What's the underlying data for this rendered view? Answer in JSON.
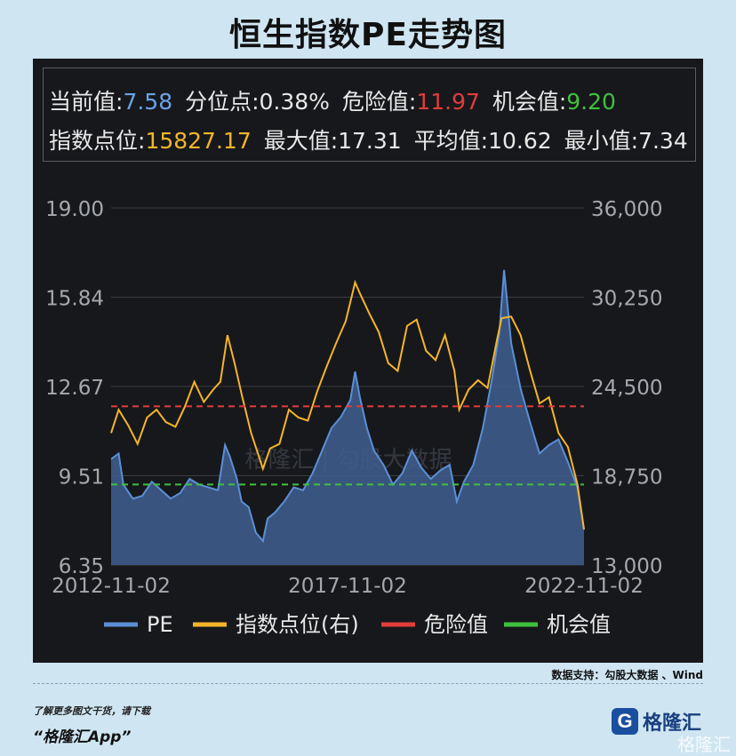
{
  "title": "恒生指数PE走势图",
  "info": {
    "current_label": "当前值:",
    "current_value": "7.58",
    "pct_label": "分位点:",
    "pct_value": "0.38%",
    "danger_label": "危险值:",
    "danger_value": "11.97",
    "opp_label": "机会值:",
    "opp_value": "9.20",
    "index_label": "指数点位:",
    "index_value": "15827.17",
    "max_label": "最大值:",
    "max_value": "17.31",
    "avg_label": "平均值:",
    "avg_value": "10.62",
    "min_label": "最小值:",
    "min_value": "7.34"
  },
  "watermark": "格隆汇 | 勾股大数据",
  "source_text": "数据支持：勾股大数据 、Wind",
  "promo": {
    "line1": "了解更多图文干货，请下载",
    "line2": "“格隆汇App”"
  },
  "logo": {
    "mark": "G",
    "text": "格隆汇"
  },
  "bottom_watermark": "格隆汇",
  "colors": {
    "pe": "#5b8fd6",
    "pe_fill": "#3f5f8f",
    "index": "#f5b52a",
    "danger": "#e23c3c",
    "opportunity": "#3ec23e",
    "background": "#17181b",
    "axis_text": "#a5a8ad"
  },
  "chart_data": {
    "type": "line",
    "x_ticks": [
      "2012-11-02",
      "2017-11-02",
      "2022-11-02"
    ],
    "y_left_ticks": [
      "19.00",
      "15.84",
      "12.67",
      "9.51",
      "6.35"
    ],
    "y_left_range": [
      6.35,
      19.0
    ],
    "y_right_ticks": [
      "36,000",
      "30,250",
      "24,500",
      "18,750",
      "13,000"
    ],
    "y_right_range": [
      13000,
      36000
    ],
    "grid": true,
    "legend_position": "bottom",
    "hlines": [
      {
        "name": "危险值",
        "value": 11.97,
        "axis": "left"
      },
      {
        "name": "机会值",
        "value": 9.2,
        "axis": "left"
      }
    ],
    "series": [
      {
        "name": "PE",
        "axis": "left",
        "style": "area",
        "x": [
          2012.84,
          2013.0,
          2013.1,
          2013.3,
          2013.5,
          2013.7,
          2013.9,
          2014.1,
          2014.3,
          2014.5,
          2014.7,
          2014.9,
          2015.1,
          2015.25,
          2015.35,
          2015.5,
          2015.6,
          2015.75,
          2015.9,
          2016.05,
          2016.15,
          2016.3,
          2016.5,
          2016.7,
          2016.9,
          2017.1,
          2017.3,
          2017.5,
          2017.7,
          2017.9,
          2018.0,
          2018.1,
          2018.25,
          2018.4,
          2018.6,
          2018.8,
          2019.0,
          2019.2,
          2019.4,
          2019.6,
          2019.8,
          2020.0,
          2020.15,
          2020.3,
          2020.5,
          2020.7,
          2020.9,
          2021.05,
          2021.15,
          2021.3,
          2021.5,
          2021.7,
          2021.9,
          2022.1,
          2022.3,
          2022.5,
          2022.7,
          2022.84
        ],
        "values": [
          10.1,
          10.3,
          9.2,
          8.7,
          8.8,
          9.3,
          9.0,
          8.7,
          8.9,
          9.4,
          9.2,
          9.1,
          9.0,
          10.6,
          10.2,
          9.4,
          8.6,
          8.4,
          7.5,
          7.2,
          8.0,
          8.2,
          8.6,
          9.1,
          9.0,
          9.6,
          10.4,
          11.2,
          11.6,
          12.2,
          13.2,
          12.3,
          11.2,
          10.4,
          9.9,
          9.2,
          9.6,
          10.4,
          9.8,
          9.4,
          9.7,
          9.9,
          8.6,
          9.3,
          9.9,
          11.2,
          13.0,
          14.6,
          16.8,
          14.2,
          12.6,
          11.4,
          10.3,
          10.6,
          10.8,
          10.0,
          9.1,
          7.6
        ]
      },
      {
        "name": "指数点位(右)",
        "axis": "right",
        "style": "line",
        "x": [
          2012.84,
          2013.0,
          2013.2,
          2013.4,
          2013.6,
          2013.8,
          2014.0,
          2014.2,
          2014.4,
          2014.6,
          2014.8,
          2015.0,
          2015.15,
          2015.3,
          2015.45,
          2015.6,
          2015.8,
          2016.05,
          2016.2,
          2016.4,
          2016.6,
          2016.8,
          2017.0,
          2017.2,
          2017.4,
          2017.6,
          2017.8,
          2018.0,
          2018.1,
          2018.3,
          2018.5,
          2018.7,
          2018.9,
          2019.1,
          2019.3,
          2019.5,
          2019.7,
          2019.9,
          2020.1,
          2020.2,
          2020.4,
          2020.6,
          2020.8,
          2021.0,
          2021.1,
          2021.3,
          2021.5,
          2021.7,
          2021.9,
          2022.1,
          2022.3,
          2022.5,
          2022.7,
          2022.84
        ],
        "values": [
          21500,
          23000,
          22000,
          20800,
          22500,
          23000,
          22200,
          21900,
          23200,
          24800,
          23500,
          24300,
          24800,
          27800,
          26000,
          24000,
          21500,
          19200,
          20500,
          20800,
          23000,
          22500,
          22300,
          24200,
          25800,
          27300,
          28700,
          31200,
          30500,
          29200,
          28000,
          26000,
          25500,
          28400,
          28800,
          26800,
          26200,
          27800,
          25500,
          23000,
          24300,
          24900,
          24400,
          27500,
          28900,
          29000,
          27800,
          25500,
          23400,
          23800,
          21500,
          20600,
          18200,
          15300
        ]
      }
    ]
  }
}
